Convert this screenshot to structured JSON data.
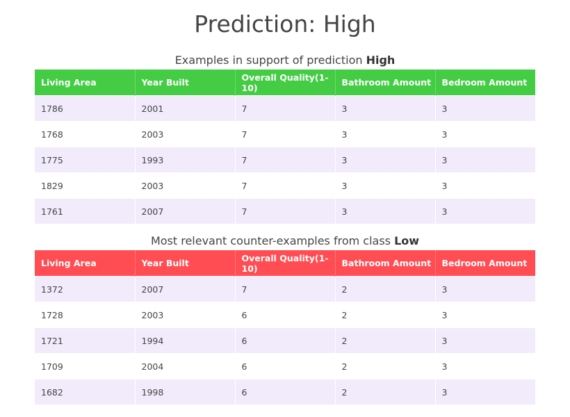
{
  "title": "Prediction: High",
  "support": {
    "caption_prefix": "Examples in support of prediction ",
    "caption_class": "High",
    "header_color": "#44cc44"
  },
  "counter": {
    "caption_prefix": "Most relevant counter-examples from class ",
    "caption_class": "Low",
    "header_color": "#ff4d53"
  },
  "row_colors": [
    "#f1ebfc",
    "#ffffff"
  ],
  "chart_data": [
    {
      "type": "table",
      "title": "Examples in support of prediction High",
      "columns": [
        "Living Area",
        "Year Built",
        "Overall Quality(1-10)",
        "Bathroom Amount",
        "Bedroom Amount"
      ],
      "rows": [
        [
          "1786",
          "2001",
          "7",
          "3",
          "3"
        ],
        [
          "1768",
          "2003",
          "7",
          "3",
          "3"
        ],
        [
          "1775",
          "1993",
          "7",
          "3",
          "3"
        ],
        [
          "1829",
          "2003",
          "7",
          "3",
          "3"
        ],
        [
          "1761",
          "2007",
          "7",
          "3",
          "3"
        ]
      ]
    },
    {
      "type": "table",
      "title": "Most relevant counter-examples from class Low",
      "columns": [
        "Living Area",
        "Year Built",
        "Overall Quality(1-10)",
        "Bathroom Amount",
        "Bedroom Amount"
      ],
      "rows": [
        [
          "1372",
          "2007",
          "7",
          "2",
          "3"
        ],
        [
          "1728",
          "2003",
          "6",
          "2",
          "3"
        ],
        [
          "1721",
          "1994",
          "6",
          "2",
          "3"
        ],
        [
          "1709",
          "2004",
          "6",
          "2",
          "3"
        ],
        [
          "1682",
          "1998",
          "6",
          "2",
          "3"
        ]
      ]
    }
  ]
}
